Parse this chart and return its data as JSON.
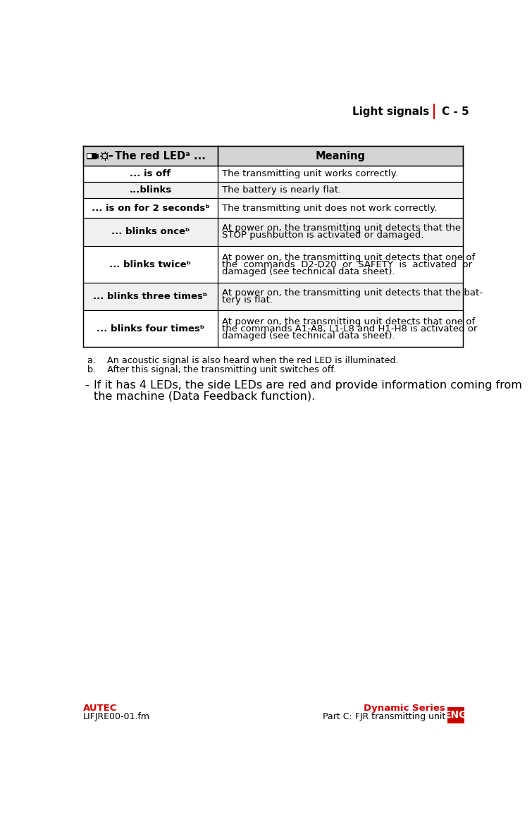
{
  "page_title": "Light signals",
  "page_number": "C - 5",
  "header_row": {
    "col1": "The red LEDᵃ ...",
    "col2": "Meaning"
  },
  "rows": [
    {
      "col1": "... is off",
      "col2": "The transmitting unit works correctly.",
      "shaded": false,
      "col2_lines": [
        "The transmitting unit works correctly."
      ]
    },
    {
      "col1": "...blinks",
      "col2": "The battery is nearly flat.",
      "shaded": true,
      "col2_lines": [
        "The battery is nearly flat."
      ]
    },
    {
      "col1": "... is on for 2 secondsᵇ",
      "col2": "The transmitting unit does not work correctly.",
      "shaded": false,
      "col2_lines": [
        "The transmitting unit does not work correctly."
      ]
    },
    {
      "col1": "... blinks onceᵇ",
      "col2": "At power on, the transmitting unit detects that the\nSTOP pushbutton is activated or damaged.",
      "shaded": true,
      "col2_lines": [
        "At power on, the transmitting unit detects that the",
        "STOP pushbutton is activated or damaged."
      ]
    },
    {
      "col1": "... blinks twiceᵇ",
      "col2": "At power on, the transmitting unit detects that one of\nthe  commands  D2-D20  or  SAFETY  is  activated  or\ndamaged (see technical data sheet).",
      "shaded": false,
      "col2_lines": [
        "At power on, the transmitting unit detects that one of",
        "the  commands  D2-D20  or  SAFETY  is  activated  or",
        "damaged (see technical data sheet)."
      ]
    },
    {
      "col1": "... blinks three timesᵇ",
      "col2": "At power on, the transmitting unit detects that the bat-\ntery is flat.",
      "shaded": true,
      "col2_lines": [
        "At power on, the transmitting unit detects that the bat-",
        "tery is flat."
      ]
    },
    {
      "col1": "... blinks four timesᵇ",
      "col2": "At power on, the transmitting unit detects that one of\nthe commands A1-A8, L1-L8 and H1-H8 is activated or\ndamaged (see technical data sheet).",
      "shaded": false,
      "col2_lines": [
        "At power on, the transmitting unit detects that one of",
        "the commands A1-A8, L1-L8 and H1-H8 is activated or",
        "damaged (see technical data sheet)."
      ]
    }
  ],
  "footnote_a": "a.    An acoustic signal is also heard when the red LED is illuminated.",
  "footnote_b": "b.    After this signal, the transmitting unit switches off.",
  "bullet_line1": "If it has 4 LEDs, the side LEDs are red and provide information coming from",
  "bullet_line2": "the machine (Data Feedback function).",
  "footer_left1": "AUTEC",
  "footer_left2": "LIFJRE00-01.fm",
  "footer_right1": "Dynamic Series",
  "footer_right2": "Part C: FJR transmitting unit",
  "footer_eng": "ENG",
  "red_color": "#cc0000",
  "shaded_color": "#f0f0f0",
  "header_bg": "#d4d4d4",
  "font_size_table": 9.5,
  "font_size_footnote": 9.2,
  "font_size_bullet": 11.5,
  "font_size_page_title": 11.0,
  "font_size_footer": 9.0
}
